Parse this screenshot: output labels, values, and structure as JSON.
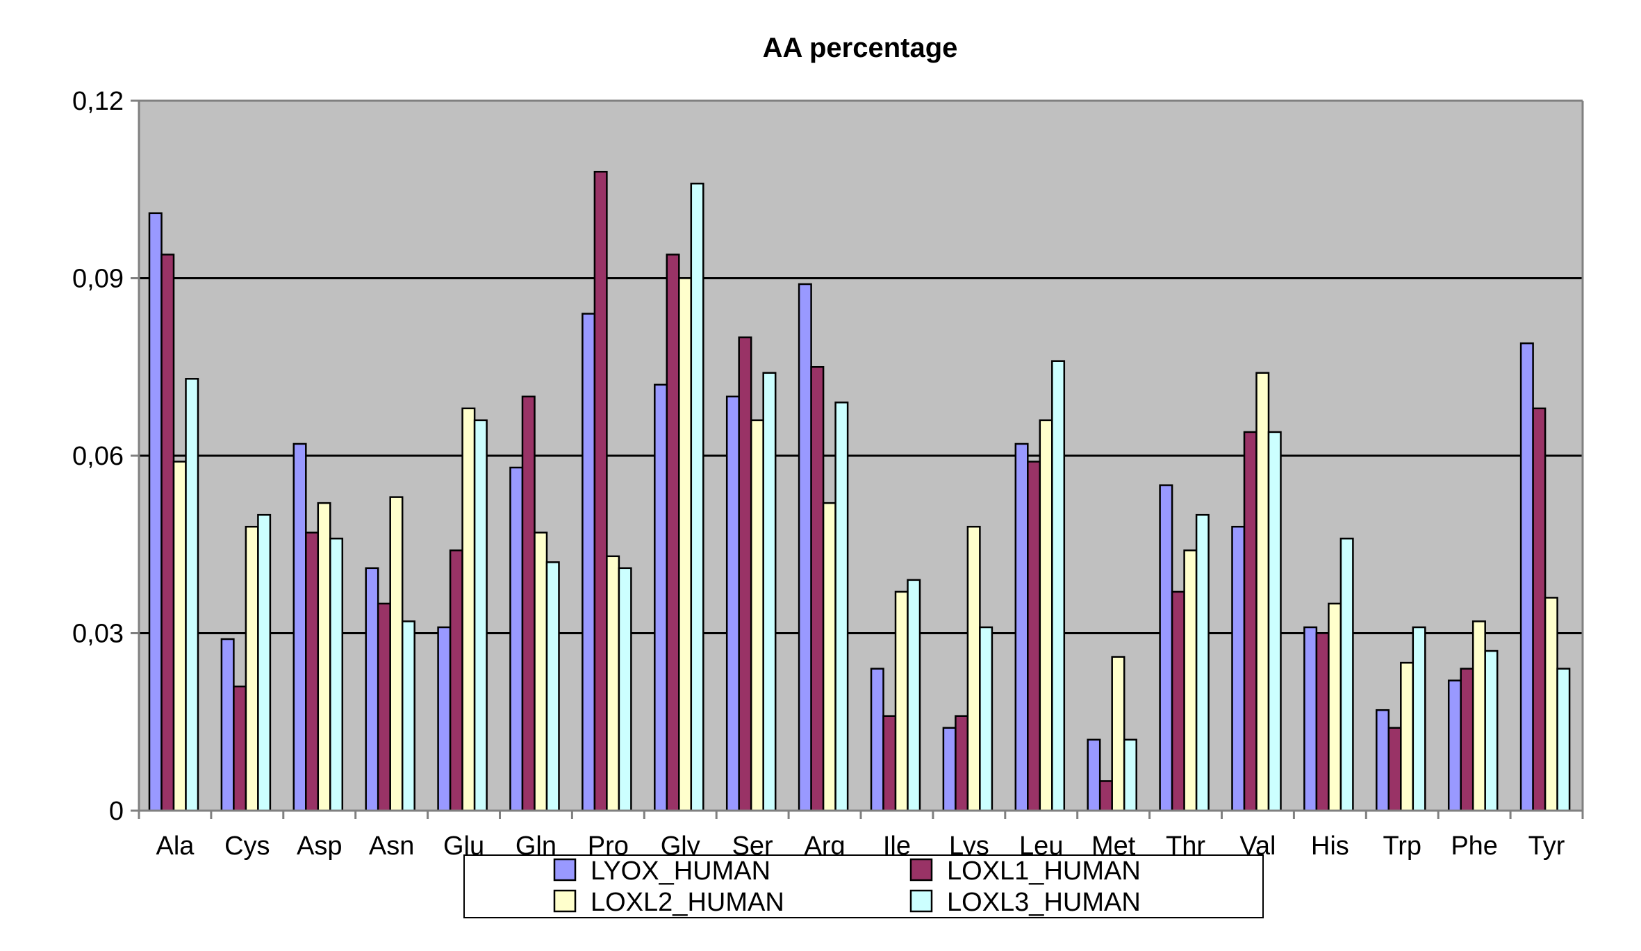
{
  "chart_data": {
    "type": "bar",
    "title": "AA percentage",
    "xlabel": "",
    "ylabel": "",
    "ylim": [
      0,
      0.12
    ],
    "yticks": [
      0,
      0.03,
      0.06,
      0.09,
      0.12
    ],
    "ytick_labels": [
      "0",
      "0,03",
      "0,06",
      "0,09",
      "0,12"
    ],
    "grid": true,
    "legend_position": "bottom-center",
    "plot_background": "#C0C0C0",
    "categories": [
      "Ala",
      "Cys",
      "Asp",
      "Asn",
      "Glu",
      "Gln",
      "Pro",
      "Gly",
      "Ser",
      "Arg",
      "Ile",
      "Lys",
      "Leu",
      "Met",
      "Thr",
      "Val",
      "His",
      "Trp",
      "Phe",
      "Tyr"
    ],
    "series": [
      {
        "name": "LYOX_HUMAN",
        "color": "#9999FF",
        "values": [
          0.101,
          0.029,
          0.062,
          0.041,
          0.031,
          0.058,
          0.084,
          0.072,
          0.07,
          0.089,
          0.024,
          0.014,
          0.062,
          0.012,
          0.055,
          0.048,
          0.031,
          0.017,
          0.022,
          0.079
        ]
      },
      {
        "name": "LOXL1_HUMAN",
        "color": "#993366",
        "values": [
          0.094,
          0.021,
          0.047,
          0.035,
          0.044,
          0.07,
          0.108,
          0.094,
          0.08,
          0.075,
          0.016,
          0.016,
          0.059,
          0.005,
          0.037,
          0.064,
          0.03,
          0.014,
          0.024,
          0.068
        ]
      },
      {
        "name": "LOXL2_HUMAN",
        "color": "#FFFFCC",
        "values": [
          0.059,
          0.048,
          0.052,
          0.053,
          0.068,
          0.047,
          0.043,
          0.09,
          0.066,
          0.052,
          0.037,
          0.048,
          0.066,
          0.026,
          0.044,
          0.074,
          0.035,
          0.025,
          0.032,
          0.036
        ]
      },
      {
        "name": "LOXL3_HUMAN",
        "color": "#CCFFFF",
        "values": [
          0.073,
          0.05,
          0.046,
          0.032,
          0.066,
          0.042,
          0.041,
          0.106,
          0.074,
          0.069,
          0.039,
          0.031,
          0.076,
          0.012,
          0.05,
          0.064,
          0.046,
          0.031,
          0.027,
          0.024
        ]
      }
    ]
  }
}
